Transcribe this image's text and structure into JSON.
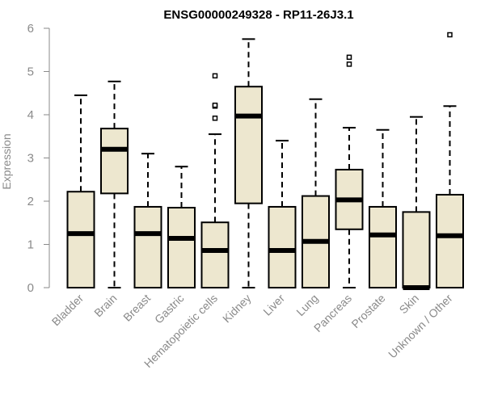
{
  "chart_data": {
    "type": "boxplot",
    "title": "ENSG00000249328 - RP11-26J3.1",
    "xlabel": "",
    "ylabel": "Expression",
    "ylim": [
      0,
      6
    ],
    "yticks": [
      0,
      1,
      2,
      3,
      4,
      5,
      6
    ],
    "grid": false,
    "categories": [
      "Bladder",
      "Brain",
      "Breast",
      "Gastric",
      "Hematopoietic cells",
      "Kidney",
      "Liver",
      "Lung",
      "Pancreas",
      "Prostate",
      "Skin",
      "Unknown / Other"
    ],
    "series": [
      {
        "name": "Bladder",
        "min": 0,
        "q1": 0,
        "median": 1.25,
        "q3": 2.22,
        "max": 4.45,
        "outliers": []
      },
      {
        "name": "Brain",
        "min": 0,
        "q1": 2.18,
        "median": 3.2,
        "q3": 3.68,
        "max": 4.77,
        "outliers": []
      },
      {
        "name": "Breast",
        "min": 0,
        "q1": 0,
        "median": 1.25,
        "q3": 1.87,
        "max": 3.1,
        "outliers": []
      },
      {
        "name": "Gastric",
        "min": 0,
        "q1": 0,
        "median": 1.14,
        "q3": 1.85,
        "max": 2.8,
        "outliers": []
      },
      {
        "name": "Hematopoietic cells",
        "min": 0,
        "q1": 0,
        "median": 0.86,
        "q3": 1.51,
        "max": 3.55,
        "outliers": [
          3.92,
          4.2,
          4.22,
          4.9
        ]
      },
      {
        "name": "Kidney",
        "min": 0,
        "q1": 1.95,
        "median": 3.97,
        "q3": 4.65,
        "max": 5.75,
        "outliers": []
      },
      {
        "name": "Liver",
        "min": 0,
        "q1": 0,
        "median": 0.86,
        "q3": 1.87,
        "max": 3.4,
        "outliers": []
      },
      {
        "name": "Lung",
        "min": 0,
        "q1": 0,
        "median": 1.07,
        "q3": 2.12,
        "max": 4.36,
        "outliers": []
      },
      {
        "name": "Pancreas",
        "min": 0,
        "q1": 1.35,
        "median": 2.03,
        "q3": 2.73,
        "max": 3.7,
        "outliers": [
          5.17,
          5.33
        ]
      },
      {
        "name": "Prostate",
        "min": 0,
        "q1": 0,
        "median": 1.22,
        "q3": 1.87,
        "max": 3.65,
        "outliers": []
      },
      {
        "name": "Skin",
        "min": 0,
        "q1": 0,
        "median": 0.0,
        "q3": 1.75,
        "max": 3.95,
        "outliers": []
      },
      {
        "name": "Unknown / Other",
        "min": 0,
        "q1": 0,
        "median": 1.2,
        "q3": 2.15,
        "max": 4.2,
        "outliers": [
          5.85
        ]
      }
    ],
    "colors": {
      "box_fill": "#ede7cf",
      "box_stroke": "#000000",
      "axis": "#8a8a8a"
    }
  }
}
